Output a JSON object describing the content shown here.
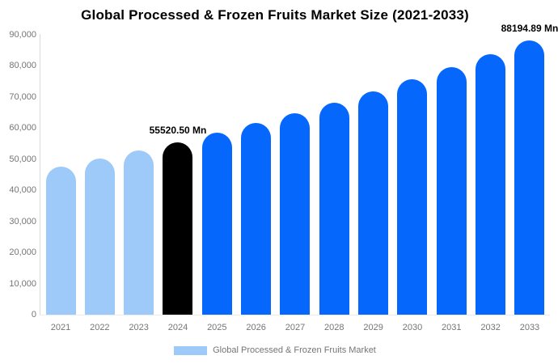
{
  "title": "Global Processed & Frozen Fruits Market Size (2021-2033)",
  "legend": {
    "label": "Global Processed & Frozen Fruits Market",
    "swatch_color": "#9ecaf9"
  },
  "colors": {
    "historical_bar": "#9ecaf9",
    "highlight_bar": "#000000",
    "forecast_bar": "#0567fc",
    "axis_line": "#d9d9d9",
    "tick_text": "#757575",
    "point_label_text": "#000000"
  },
  "y_axis": {
    "tick_labels_top_to_bottom": [
      "90,000",
      "80,000",
      "70,000",
      "60,000",
      "50,000",
      "40,000",
      "30,000",
      "20,000",
      "10,000",
      "0"
    ],
    "min": 0,
    "max": 90000
  },
  "chart_data": {
    "type": "bar",
    "title": "Global Processed & Frozen Fruits Market Size (2021-2033)",
    "xlabel": "",
    "ylabel": "",
    "unit": "Mn",
    "ylim": [
      0,
      90000
    ],
    "grid": false,
    "legend_position": "bottom",
    "categories": [
      "2021",
      "2022",
      "2023",
      "2024",
      "2025",
      "2026",
      "2027",
      "2028",
      "2029",
      "2030",
      "2031",
      "2032",
      "2033"
    ],
    "values": [
      47580,
      50090,
      52740,
      55520.5,
      58450,
      61540,
      64780,
      68200,
      71800,
      75590,
      79580,
      83780,
      88194.89
    ],
    "bar_roles": [
      "historical",
      "historical",
      "historical",
      "highlight",
      "forecast",
      "forecast",
      "forecast",
      "forecast",
      "forecast",
      "forecast",
      "forecast",
      "forecast",
      "forecast"
    ],
    "point_labels": {
      "2024": "55520.50 Mn",
      "2033": "88194.89 Mn"
    }
  }
}
